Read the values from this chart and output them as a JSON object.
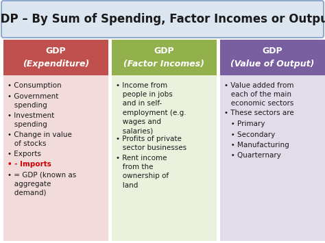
{
  "title": "GDP – By Sum of Spending, Factor Incomes or Output",
  "title_fontsize": 12,
  "title_bg": "#dce6f1",
  "title_border": "#8faacc",
  "bg_color": "#ffffff",
  "columns": [
    {
      "header_line1": "GDP",
      "header_line2": "(Expenditure)",
      "header_bg": "#c0504d",
      "body_bg": "#f2dcdb",
      "header_color": "#ffffff",
      "items": [
        {
          "text": "• Consumption",
          "color": "#1a1a1a",
          "bold": false
        },
        {
          "text": "• Government\n   spending",
          "color": "#1a1a1a",
          "bold": false
        },
        {
          "text": "• Investment\n   spending",
          "color": "#1a1a1a",
          "bold": false
        },
        {
          "text": "• Change in value\n   of stocks",
          "color": "#1a1a1a",
          "bold": false
        },
        {
          "text": "• Exports",
          "color": "#1a1a1a",
          "bold": false
        },
        {
          "text": "• - Imports",
          "color": "#cc0000",
          "bold": true
        },
        {
          "text": "• = GDP (known as\n   aggregate\n   demand)",
          "color": "#1a1a1a",
          "bold": false
        }
      ]
    },
    {
      "header_line1": "GDP",
      "header_line2": "(Factor Incomes)",
      "header_bg": "#92b04b",
      "body_bg": "#eaf1dd",
      "header_color": "#ffffff",
      "items": [
        {
          "text": "• Income from\n   people in jobs\n   and in self-\n   employment (e.g.\n   wages and\n   salaries)",
          "color": "#1a1a1a",
          "bold": false
        },
        {
          "text": "• Profits of private\n   sector businesses",
          "color": "#1a1a1a",
          "bold": false
        },
        {
          "text": "• Rent income\n   from the\n   ownership of\n   land",
          "color": "#1a1a1a",
          "bold": false
        }
      ]
    },
    {
      "header_line1": "GDP",
      "header_line2": "(Value of Output)",
      "header_bg": "#7a5fa0",
      "body_bg": "#e2dcea",
      "header_color": "#ffffff",
      "items": [
        {
          "text": "• Value added from\n   each of the main\n   economic sectors",
          "color": "#1a1a1a",
          "bold": false
        },
        {
          "text": "• These sectors are",
          "color": "#1a1a1a",
          "bold": false
        },
        {
          "text": "   • Primary",
          "color": "#1a1a1a",
          "bold": false
        },
        {
          "text": "   • Secondary",
          "color": "#1a1a1a",
          "bold": false
        },
        {
          "text": "   • Manufacturing",
          "color": "#1a1a1a",
          "bold": false
        },
        {
          "text": "   • Quarternary",
          "color": "#1a1a1a",
          "bold": false
        }
      ]
    }
  ],
  "fig_width": 4.74,
  "fig_height": 3.55,
  "dpi": 100
}
